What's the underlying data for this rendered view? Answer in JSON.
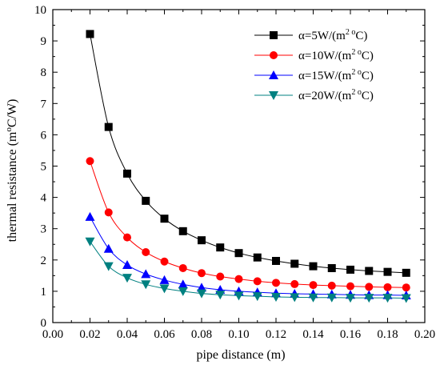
{
  "chart_data": {
    "type": "line",
    "title": "",
    "xlabel": "pipe distance (m)",
    "ylabel": "thermal resistance (m°C/W)",
    "ylabel_parts": {
      "pre": "thermal resistance (m",
      "sup": "o",
      "post": "C/W)"
    },
    "xlim": [
      0.0,
      0.2
    ],
    "ylim": [
      0,
      10
    ],
    "x_ticks": [
      0.0,
      0.02,
      0.04,
      0.06,
      0.08,
      0.1,
      0.12,
      0.14,
      0.16,
      0.18,
      0.2
    ],
    "x_tick_labels": [
      "0.00",
      "0.02",
      "0.04",
      "0.06",
      "0.08",
      "0.10",
      "0.12",
      "0.14",
      "0.16",
      "0.18",
      "0.20"
    ],
    "y_ticks": [
      0,
      1,
      2,
      3,
      4,
      5,
      6,
      7,
      8,
      9,
      10
    ],
    "y_tick_labels": [
      "0",
      "1",
      "2",
      "3",
      "4",
      "5",
      "6",
      "7",
      "8",
      "9",
      "10"
    ],
    "grid": false,
    "legend_position": "top-right",
    "x": [
      0.02,
      0.03,
      0.04,
      0.05,
      0.06,
      0.07,
      0.08,
      0.09,
      0.1,
      0.11,
      0.12,
      0.13,
      0.14,
      0.15,
      0.16,
      0.17,
      0.18,
      0.19
    ],
    "series": [
      {
        "name": "α=5W/(m2 oC)",
        "legend_parts": {
          "pre": "α=5W/(m",
          "sup": "2 o",
          "post": "C)"
        },
        "color": "#000000",
        "marker": "square",
        "values": [
          9.22,
          6.25,
          4.76,
          3.89,
          3.32,
          2.92,
          2.63,
          2.4,
          2.22,
          2.08,
          1.97,
          1.88,
          1.8,
          1.74,
          1.69,
          1.65,
          1.62,
          1.59
        ]
      },
      {
        "name": "α=10W/(m2 oC)",
        "legend_parts": {
          "pre": "α=10W/(m",
          "sup": "2 o",
          "post": "C)"
        },
        "color": "#ff0000",
        "marker": "circle",
        "values": [
          5.16,
          3.52,
          2.72,
          2.25,
          1.95,
          1.74,
          1.58,
          1.47,
          1.39,
          1.32,
          1.27,
          1.23,
          1.2,
          1.18,
          1.16,
          1.14,
          1.13,
          1.12
        ]
      },
      {
        "name": "α=15W/(m2 oC)",
        "legend_parts": {
          "pre": "α=15W/(m",
          "sup": "2 o",
          "post": "C)"
        },
        "color": "#0000ff",
        "marker": "triangle-up",
        "values": [
          3.38,
          2.36,
          1.84,
          1.55,
          1.36,
          1.22,
          1.12,
          1.05,
          1.0,
          0.97,
          0.94,
          0.92,
          0.91,
          0.9,
          0.89,
          0.88,
          0.88,
          0.87
        ]
      },
      {
        "name": "α=20W/(m2 oC)",
        "legend_parts": {
          "pre": "α=20W/(m",
          "sup": "2 o",
          "post": "C)"
        },
        "color": "#008080",
        "marker": "triangle-down",
        "values": [
          2.59,
          1.8,
          1.43,
          1.22,
          1.09,
          1.0,
          0.93,
          0.89,
          0.86,
          0.84,
          0.82,
          0.81,
          0.8,
          0.8,
          0.79,
          0.79,
          0.79,
          0.78
        ]
      }
    ]
  }
}
